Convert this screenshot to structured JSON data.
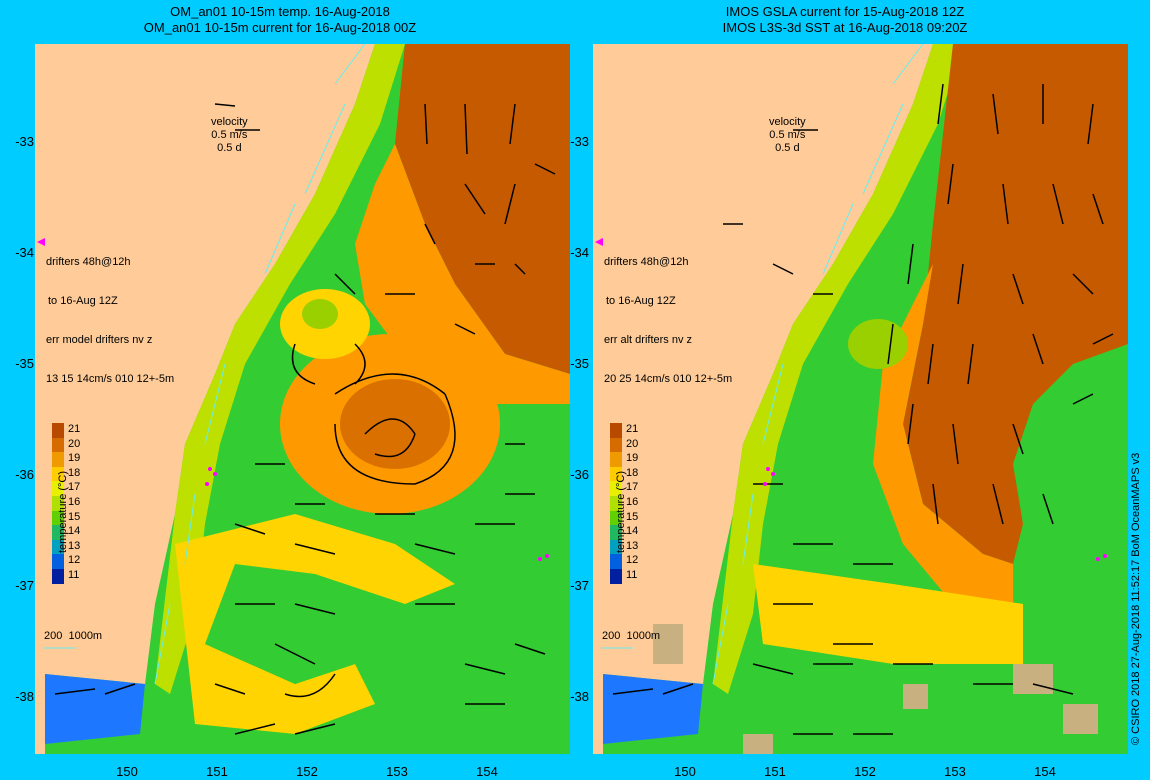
{
  "left_panel": {
    "title_line1": "OM_an01 10-15m temp. 16-Aug-2018",
    "title_line2": "OM_an01 10-15m current for 16-Aug-2018 00Z",
    "drifter_note": [
      "drifters 48h@12h",
      "to 16-Aug 12Z",
      "err model drifters nv z",
      "13 15 14cm/s 010 12+-5m"
    ]
  },
  "right_panel": {
    "title_line1": "IMOS GSLA current for 15-Aug-2018 12Z",
    "title_line2": "IMOS L3S-3d SST at 16-Aug-2018 09:20Z",
    "drifter_note": [
      "drifters 48h@12h",
      "to 16-Aug 12Z",
      "err alt drifters nv z",
      "20 25 14cm/s 010 12+-5m"
    ]
  },
  "velocity_key": [
    "velocity",
    "0.5 m/s",
    "0.5 d"
  ],
  "depth_legend": "200  1000m",
  "y_axis_labels": [
    "-33",
    "-34",
    "-35",
    "-36",
    "-37",
    "-38"
  ],
  "x_axis_labels": [
    "150",
    "151",
    "152",
    "153",
    "154"
  ],
  "colorbar": {
    "title": "temperature (°C)",
    "ticks": [
      "21",
      "20",
      "19",
      "18",
      "17",
      "16",
      "15",
      "14",
      "13",
      "12",
      "11"
    ],
    "colors": [
      "#b84a00",
      "#d66b00",
      "#ee9a00",
      "#ffcc00",
      "#e8f000",
      "#b0e000",
      "#60d000",
      "#20b860",
      "#00a0c0",
      "#0060e0",
      "#0020a0"
    ]
  },
  "copyright": "© CSIRO 2018   27-Aug-2018 11:52:17 BoM OceanMAPS v3",
  "colors": {
    "background": "#00ccff",
    "land": "#ffcc99",
    "warm": "#c55a00",
    "mid": "#ff9900",
    "cool": "#33cc33",
    "drifter": "#ff00ff"
  }
}
